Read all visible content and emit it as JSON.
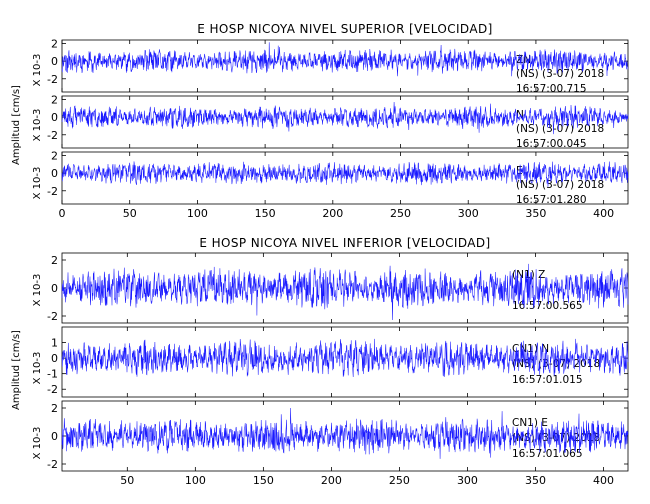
{
  "chart_data": [
    {
      "type": "line",
      "title": "E HOSP NICOYA NIVEL SUPERIOR [VELOCIDAD]",
      "ylabel": "Amplitud [cm/s]",
      "xlabel": "",
      "xlim": [
        0,
        418
      ],
      "xticks": [
        0,
        50,
        100,
        150,
        200,
        250,
        300,
        350,
        400
      ],
      "series": [
        {
          "scale": "X 10-3",
          "ylim": [
            -3.5,
            2.4
          ],
          "yticks": [
            -2,
            0,
            2
          ],
          "amplitude": 1.1,
          "seed": 11,
          "annotation": [
            "ZN",
            "(NS) (3-07) 2018",
            "16:57:00.715"
          ]
        },
        {
          "scale": "X 10-3",
          "ylim": [
            -3.5,
            2.4
          ],
          "yticks": [
            -2,
            0,
            2
          ],
          "amplitude": 1.0,
          "seed": 23,
          "annotation": [
            "N",
            "(NS) (3-07) 2018",
            "16:57:00.045"
          ]
        },
        {
          "scale": "X 10-3",
          "ylim": [
            -3.5,
            2.4
          ],
          "yticks": [
            -2,
            0,
            2
          ],
          "amplitude": 1.05,
          "seed": 37,
          "annotation": [
            "E",
            "(NS) (3-07) 2018",
            "16:57:01.280"
          ]
        }
      ]
    },
    {
      "type": "line",
      "title": "E HOSP NICOYA NIVEL INFERIOR [VELOCIDAD]",
      "ylabel": "Amplitud [cm/s]",
      "xlabel": "",
      "xlim": [
        2,
        418
      ],
      "xticks": [
        50,
        100,
        150,
        200,
        250,
        300,
        350,
        400
      ],
      "series": [
        {
          "scale": "X 10-3",
          "ylim": [
            -2.5,
            2.5
          ],
          "yticks": [
            -2,
            0,
            2
          ],
          "amplitude": 1.2,
          "seed": 53,
          "annotation": [
            "(N1) Z",
            "",
            "16:57:00.565"
          ]
        },
        {
          "scale": "X 10-3",
          "ylim": [
            -2.5,
            2.0
          ],
          "yticks": [
            -2,
            -1,
            0,
            1
          ],
          "amplitude": 0.9,
          "seed": 71,
          "annotation": [
            "CN1) N",
            "(NS) (3-07) 2018",
            "16:57:01.015"
          ]
        },
        {
          "scale": "X 10-3",
          "ylim": [
            -2.5,
            2.5
          ],
          "yticks": [
            -2,
            0,
            2
          ],
          "amplitude": 1.0,
          "seed": 89,
          "annotation": [
            "CN1) E",
            "(NS) (3-07) 2018",
            "16:57:01.065"
          ]
        }
      ]
    }
  ]
}
